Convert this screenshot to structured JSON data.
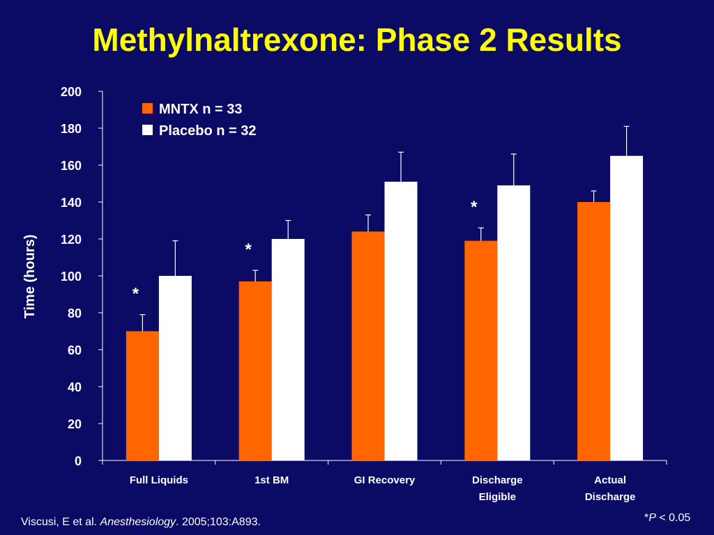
{
  "title": "Methylnaltrexone: Phase 2 Results",
  "colors": {
    "background": "#0b0b66",
    "title": "#ffff00",
    "mntx": "#ff6600",
    "placebo": "#ffffff"
  },
  "chart_data": {
    "type": "bar",
    "ylabel": "Time (hours)",
    "xlabel": "",
    "ylim": [
      0,
      200
    ],
    "yticks": [
      0,
      20,
      40,
      60,
      80,
      100,
      120,
      140,
      160,
      180,
      200
    ],
    "categories": [
      [
        "Full Liquids"
      ],
      [
        "1st BM"
      ],
      [
        "GI Recovery"
      ],
      [
        "Discharge",
        "Eligible"
      ],
      [
        "Actual",
        "Discharge"
      ]
    ],
    "series": [
      {
        "name": "MNTX n = 33",
        "color": "#ff6600",
        "values": [
          70,
          97,
          124,
          119,
          140
        ],
        "error": [
          9,
          6,
          9,
          7,
          6
        ]
      },
      {
        "name": "Placebo n = 32",
        "color": "#ffffff",
        "values": [
          100,
          120,
          151,
          149,
          165
        ],
        "error": [
          19,
          10,
          16,
          17,
          16
        ]
      }
    ],
    "significant": [
      true,
      true,
      false,
      true,
      false
    ],
    "significance_marker": "*",
    "legend_position": "top-left",
    "grid": false
  },
  "citation": {
    "authors": "Viscusi, E et al. ",
    "journal": "Anesthesiology",
    "rest": ". 2005;103:A893."
  },
  "footnote": {
    "star": "*",
    "p": "P",
    "rest": " < 0.05"
  }
}
